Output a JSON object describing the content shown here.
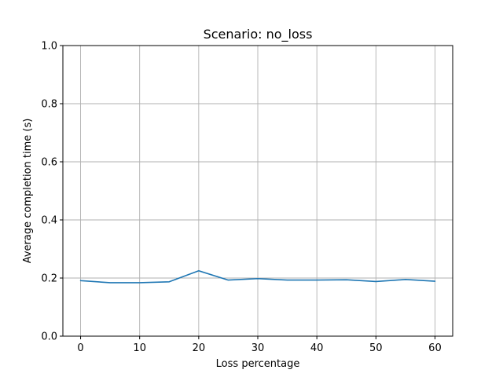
{
  "chart_data": {
    "type": "line",
    "title": "Scenario: no_loss",
    "xlabel": "Loss percentage",
    "ylabel": "Average completion time (s)",
    "xlim": [
      -3,
      63
    ],
    "ylim": [
      0.0,
      1.0
    ],
    "xticks": [
      0,
      10,
      20,
      30,
      40,
      50,
      60
    ],
    "xtick_labels": [
      "0",
      "10",
      "20",
      "30",
      "40",
      "50",
      "60"
    ],
    "yticks": [
      0.0,
      0.2,
      0.4,
      0.6,
      0.8,
      1.0
    ],
    "ytick_labels": [
      "0.0",
      "0.2",
      "0.4",
      "0.6",
      "0.8",
      "1.0"
    ],
    "grid": true,
    "series": [
      {
        "color": "#1f77b4",
        "x": [
          0,
          5,
          10,
          15,
          20,
          25,
          30,
          35,
          40,
          45,
          50,
          55,
          60
        ],
        "y": [
          0.191,
          0.184,
          0.184,
          0.187,
          0.225,
          0.193,
          0.198,
          0.193,
          0.193,
          0.194,
          0.188,
          0.195,
          0.189
        ]
      }
    ]
  }
}
